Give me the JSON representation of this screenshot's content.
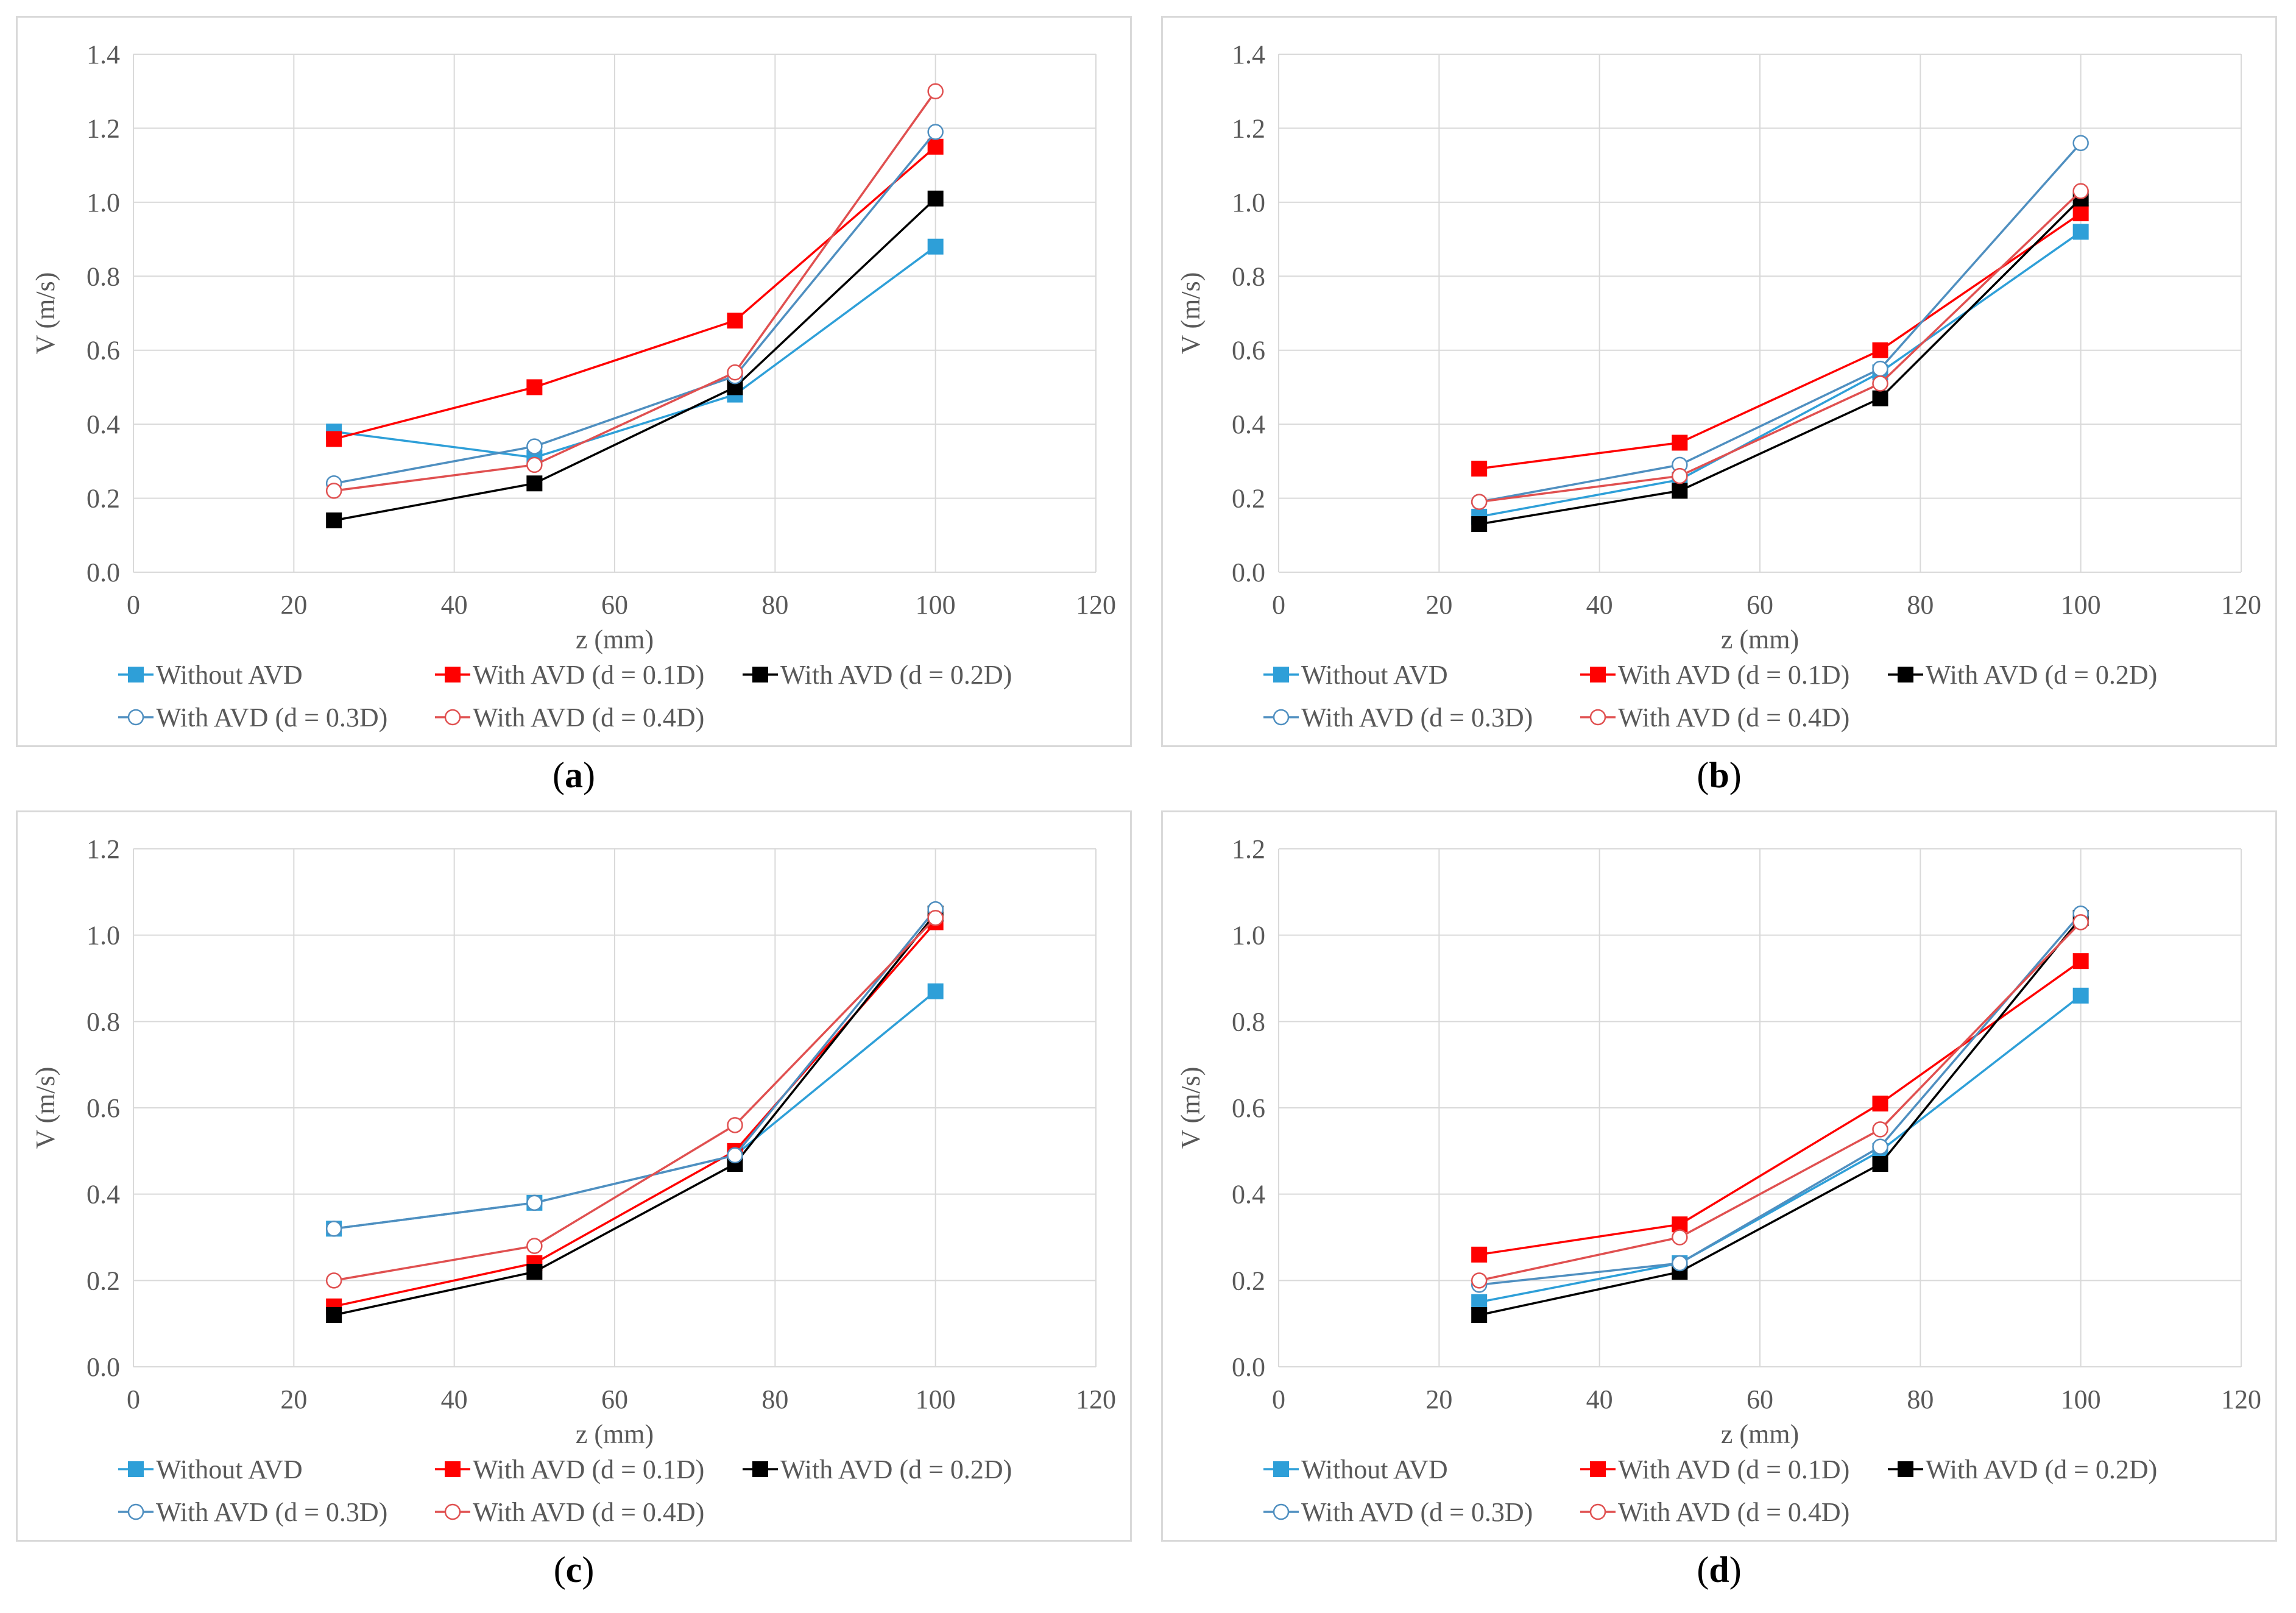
{
  "chart_data": [
    {
      "id": "a",
      "type": "line",
      "panel_label": "a",
      "xlabel": "z (mm)",
      "ylabel": "V (m/s)",
      "xlim": [
        0,
        120
      ],
      "ylim": [
        0,
        1.4
      ],
      "xticks": [
        "0",
        "20",
        "40",
        "60",
        "80",
        "100",
        "120"
      ],
      "yticks": [
        "0.0",
        "0.2",
        "0.4",
        "0.6",
        "0.8",
        "1.0",
        "1.2",
        "1.4"
      ],
      "x": [
        25,
        50,
        75,
        100
      ],
      "grid": true,
      "legend_position": "bottom",
      "series": [
        {
          "name": "Without AVD",
          "color": "#2e9fd8",
          "marker": "square-filled",
          "values": [
            0.38,
            0.31,
            0.48,
            0.88
          ]
        },
        {
          "name": "With AVD (d = 0.1D)",
          "color": "#ff0000",
          "marker": "square-filled",
          "values": [
            0.36,
            0.5,
            0.68,
            1.15
          ]
        },
        {
          "name": "With AVD (d = 0.2D)",
          "color": "#000000",
          "marker": "square-filled",
          "values": [
            0.14,
            0.24,
            0.5,
            1.01
          ]
        },
        {
          "name": "With AVD (d = 0.3D)",
          "color": "#4f8fc0",
          "marker": "circle-open",
          "values": [
            0.24,
            0.34,
            0.53,
            1.19
          ]
        },
        {
          "name": "With AVD (d = 0.4D)",
          "color": "#e05050",
          "marker": "circle-open",
          "values": [
            0.22,
            0.29,
            0.54,
            1.3
          ]
        }
      ]
    },
    {
      "id": "b",
      "type": "line",
      "panel_label": "b",
      "xlabel": "z (mm)",
      "ylabel": "V (m/s)",
      "xlim": [
        0,
        120
      ],
      "ylim": [
        0,
        1.4
      ],
      "xticks": [
        "0",
        "20",
        "40",
        "60",
        "80",
        "100",
        "120"
      ],
      "yticks": [
        "0.0",
        "0.2",
        "0.4",
        "0.6",
        "0.8",
        "1.0",
        "1.2",
        "1.4"
      ],
      "x": [
        25,
        50,
        75,
        100
      ],
      "grid": true,
      "legend_position": "bottom",
      "series": [
        {
          "name": "Without AVD",
          "color": "#2e9fd8",
          "marker": "square-filled",
          "values": [
            0.15,
            0.25,
            0.54,
            0.92
          ]
        },
        {
          "name": "With AVD (d = 0.1D)",
          "color": "#ff0000",
          "marker": "square-filled",
          "values": [
            0.28,
            0.35,
            0.6,
            0.97
          ]
        },
        {
          "name": "With AVD (d = 0.2D)",
          "color": "#000000",
          "marker": "square-filled",
          "values": [
            0.13,
            0.22,
            0.47,
            1.01
          ]
        },
        {
          "name": "With AVD (d = 0.3D)",
          "color": "#4f8fc0",
          "marker": "circle-open",
          "values": [
            0.19,
            0.29,
            0.55,
            1.16
          ]
        },
        {
          "name": "With AVD (d = 0.4D)",
          "color": "#e05050",
          "marker": "circle-open",
          "values": [
            0.19,
            0.26,
            0.51,
            1.03
          ]
        }
      ]
    },
    {
      "id": "c",
      "type": "line",
      "panel_label": "c",
      "xlabel": "z (mm)",
      "ylabel": "V (m/s)",
      "xlim": [
        0,
        120
      ],
      "ylim": [
        0,
        1.2
      ],
      "xticks": [
        "0",
        "20",
        "40",
        "60",
        "80",
        "100",
        "120"
      ],
      "yticks": [
        "0.0",
        "0.2",
        "0.4",
        "0.6",
        "0.8",
        "1.0",
        "1.2"
      ],
      "x": [
        25,
        50,
        75,
        100
      ],
      "grid": true,
      "legend_position": "bottom",
      "series": [
        {
          "name": "Without AVD",
          "color": "#2e9fd8",
          "marker": "square-filled",
          "values": [
            0.32,
            0.38,
            0.49,
            0.87
          ]
        },
        {
          "name": "With AVD (d = 0.1D)",
          "color": "#ff0000",
          "marker": "square-filled",
          "values": [
            0.14,
            0.24,
            0.5,
            1.03
          ]
        },
        {
          "name": "With AVD (d = 0.2D)",
          "color": "#000000",
          "marker": "square-filled",
          "values": [
            0.12,
            0.22,
            0.47,
            1.05
          ]
        },
        {
          "name": "With AVD (d = 0.3D)",
          "color": "#4f8fc0",
          "marker": "circle-open",
          "values": [
            0.32,
            0.38,
            0.49,
            1.06
          ]
        },
        {
          "name": "With AVD (d = 0.4D)",
          "color": "#e05050",
          "marker": "circle-open",
          "values": [
            0.2,
            0.28,
            0.56,
            1.04
          ]
        }
      ]
    },
    {
      "id": "d",
      "type": "line",
      "panel_label": "d",
      "xlabel": "z (mm)",
      "ylabel": "V (m/s)",
      "xlim": [
        0,
        120
      ],
      "ylim": [
        0,
        1.2
      ],
      "xticks": [
        "0",
        "20",
        "40",
        "60",
        "80",
        "100",
        "120"
      ],
      "yticks": [
        "0.0",
        "0.2",
        "0.4",
        "0.6",
        "0.8",
        "1.0",
        "1.2"
      ],
      "x": [
        25,
        50,
        75,
        100
      ],
      "grid": true,
      "legend_position": "bottom",
      "series": [
        {
          "name": "Without AVD",
          "color": "#2e9fd8",
          "marker": "square-filled",
          "values": [
            0.15,
            0.24,
            0.5,
            0.86
          ]
        },
        {
          "name": "With AVD (d = 0.1D)",
          "color": "#ff0000",
          "marker": "square-filled",
          "values": [
            0.26,
            0.33,
            0.61,
            0.94
          ]
        },
        {
          "name": "With AVD (d = 0.2D)",
          "color": "#000000",
          "marker": "square-filled",
          "values": [
            0.12,
            0.22,
            0.47,
            1.04
          ]
        },
        {
          "name": "With AVD (d = 0.3D)",
          "color": "#4f8fc0",
          "marker": "circle-open",
          "values": [
            0.19,
            0.24,
            0.51,
            1.05
          ]
        },
        {
          "name": "With AVD (d = 0.4D)",
          "color": "#e05050",
          "marker": "circle-open",
          "values": [
            0.2,
            0.3,
            0.55,
            1.03
          ]
        }
      ]
    }
  ]
}
